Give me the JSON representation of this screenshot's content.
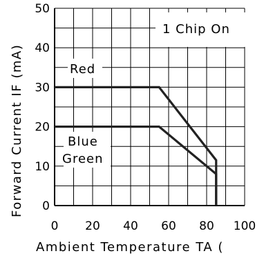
{
  "chart_data": {
    "type": "line",
    "xlabel": "Ambient Temperature TA (",
    "ylabel": "Forward Current IF (mA)",
    "xlim": [
      0,
      100
    ],
    "ylim": [
      0,
      50
    ],
    "x_ticks": [
      "0",
      "20",
      "40",
      "60",
      "80",
      "100"
    ],
    "y_ticks": [
      "0",
      "10",
      "20",
      "30",
      "40",
      "50"
    ],
    "grid": true,
    "annotations": [
      "1 Chip On",
      "Red",
      "Blue",
      "Green"
    ],
    "series": [
      {
        "name": "Red",
        "x": [
          0,
          55,
          85,
          85
        ],
        "y": [
          30,
          30,
          11.5,
          0
        ]
      },
      {
        "name": "Blue Green",
        "x": [
          0,
          55,
          85,
          85
        ],
        "y": [
          20,
          20,
          8,
          0
        ]
      }
    ],
    "colors": {
      "line": "#222222",
      "grid": "#000000"
    }
  }
}
